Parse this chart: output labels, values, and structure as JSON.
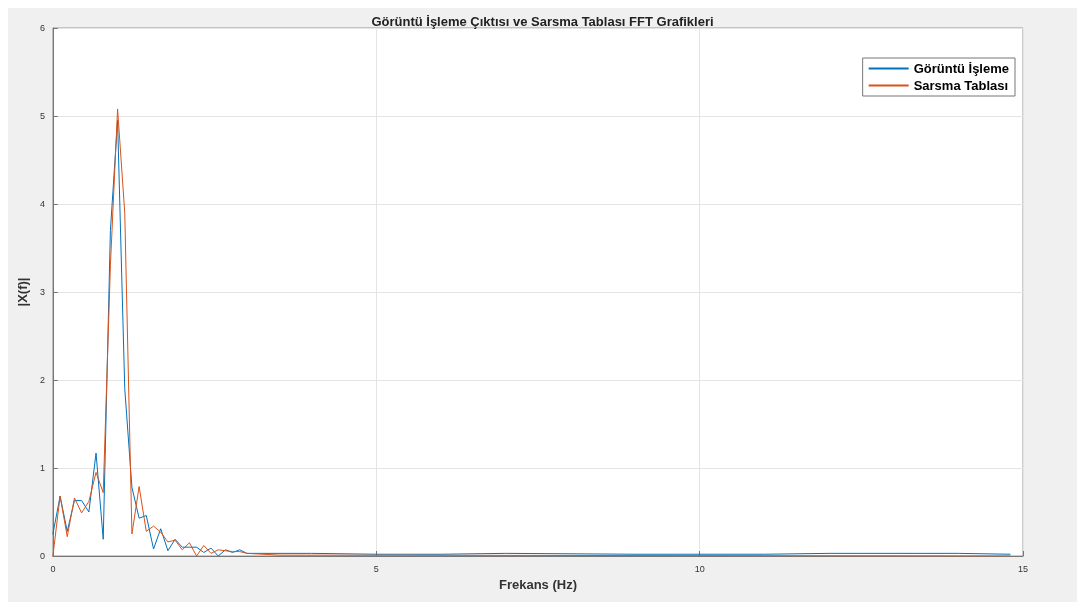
{
  "chart_data": {
    "type": "line",
    "title": "Görüntü İşleme Çıktısı ve Sarsma Tablası FFT Grafikleri",
    "xlabel": "Frekans (Hz)",
    "ylabel": "|X(f)|",
    "series": [
      {
        "name": "Görüntü İşleme",
        "color": "#0072bd",
        "x": [
          0,
          0.111,
          0.222,
          0.333,
          0.444,
          0.556,
          0.667,
          0.778,
          0.889,
          1,
          1.111,
          1.222,
          1.333,
          1.444,
          1.556,
          1.667,
          1.778,
          1.889,
          2,
          2.111,
          2.222,
          2.333,
          2.444,
          2.556,
          2.667,
          2.778,
          2.889,
          3,
          4,
          5,
          6,
          7,
          9,
          11,
          12,
          14,
          14.8
        ],
        "values": [
          0.25,
          0.68,
          0.28,
          0.63,
          0.63,
          0.5,
          1.17,
          0.19,
          3.7,
          4.95,
          1.9,
          0.78,
          0.43,
          0.46,
          0.08,
          0.31,
          0.06,
          0.19,
          0.1,
          0.1,
          0.1,
          0.04,
          0.09,
          0,
          0.07,
          0.04,
          0.07,
          0.03,
          0.03,
          0.02,
          0.02,
          0.03,
          0.02,
          0.02,
          0.03,
          0.03,
          0.02
        ]
      },
      {
        "name": "Sarsma Tablası",
        "color": "#d95319",
        "x": [
          0,
          0.111,
          0.222,
          0.333,
          0.444,
          0.556,
          0.667,
          0.778,
          0.889,
          1,
          1.111,
          1.222,
          1.333,
          1.444,
          1.556,
          1.667,
          1.778,
          1.889,
          2,
          2.111,
          2.222,
          2.333,
          2.444,
          2.556,
          2.667,
          2.778,
          2.889,
          3,
          3.5,
          14.8
        ],
        "values": [
          0,
          0.68,
          0.22,
          0.66,
          0.49,
          0.62,
          0.95,
          0.72,
          3.3,
          5.08,
          3.9,
          0.25,
          0.79,
          0.28,
          0.34,
          0.27,
          0.16,
          0.18,
          0.07,
          0.15,
          0,
          0.12,
          0.03,
          0.07,
          0.06,
          0.05,
          0.05,
          0.03,
          0.01,
          0
        ]
      }
    ],
    "xlim": [
      0,
      15
    ],
    "xticks": [
      0,
      5,
      10,
      15
    ],
    "ylim": [
      0,
      6
    ],
    "yticks": [
      0,
      1,
      2,
      3,
      4,
      5,
      6
    ],
    "grid": true,
    "legend": "top right",
    "line_style": "solid",
    "marker": "none"
  }
}
